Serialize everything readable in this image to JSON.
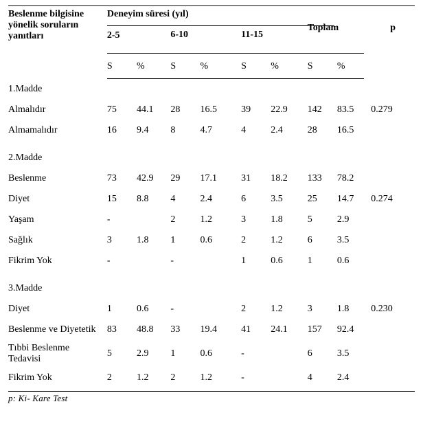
{
  "header": {
    "rowLabelTitle1": "Beslenme bilgisine",
    "rowLabelTitle2": "yönelik soruların",
    "rowLabelTitle3": "yanıtları",
    "groupTitle": "Deneyim süresi (yıl)",
    "col25": "2-5",
    "col610": "6-10",
    "col1115": "11-15",
    "totalTitle": "Toplam",
    "pTitle": "p",
    "subS": "S",
    "subPct": "%"
  },
  "sections": [
    {
      "title": "1.Madde",
      "p": "0.279",
      "pRowIndex": 0,
      "rows": [
        {
          "label": "Almalıdır",
          "v": [
            "75",
            "44.1",
            "28",
            "16.5",
            "39",
            "22.9",
            "142",
            "83.5"
          ]
        },
        {
          "label": "Almamalıdır",
          "v": [
            "16",
            "9.4",
            "8",
            "4.7",
            "4",
            "2.4",
            "28",
            "16.5"
          ]
        }
      ]
    },
    {
      "title": "2.Madde",
      "p": "0.274",
      "pRowIndex": 1,
      "rows": [
        {
          "label": "Beslenme",
          "v": [
            "73",
            "42.9",
            "29",
            "17.1",
            "31",
            "18.2",
            "133",
            "78.2"
          ]
        },
        {
          "label": "Diyet",
          "v": [
            "15",
            "8.8",
            "4",
            "2.4",
            "6",
            "3.5",
            "25",
            "14.7"
          ]
        },
        {
          "label": "Yaşam",
          "v": [
            "-",
            "",
            "2",
            "1.2",
            "3",
            "1.8",
            "5",
            "2.9"
          ]
        },
        {
          "label": "Sağlık",
          "v": [
            "3",
            "1.8",
            "1",
            "0.6",
            "2",
            "1.2",
            "6",
            "3.5"
          ]
        },
        {
          "label": "Fikrim Yok",
          "v": [
            "-",
            "",
            "-",
            "",
            "1",
            "0.6",
            "1",
            "0.6"
          ]
        }
      ]
    },
    {
      "title": "3.Madde",
      "p": "0.230",
      "pRowIndex": 0,
      "rows": [
        {
          "label": "Diyet",
          "v": [
            "1",
            "0.6",
            "-",
            "",
            "2",
            "1.2",
            "3",
            "1.8"
          ]
        },
        {
          "label": "Beslenme ve Diyetetik",
          "v": [
            "83",
            "48.8",
            "33",
            "19.4",
            "41",
            "24.1",
            "157",
            "92.4"
          ]
        },
        {
          "label": "Tıbbi Beslenme Tedavisi",
          "v": [
            "5",
            "2.9",
            "1",
            "0.6",
            "-",
            "",
            "6",
            "3.5"
          ],
          "multiline": true,
          "line1": "Tıbbi Beslenme",
          "line2": "Tedavisi"
        },
        {
          "label": "Fikrim Yok",
          "v": [
            "2",
            "1.2",
            "2",
            "1.2",
            "-",
            "",
            "4",
            "2.4"
          ]
        }
      ]
    }
  ],
  "footnote": "p: Ki- Kare Test"
}
